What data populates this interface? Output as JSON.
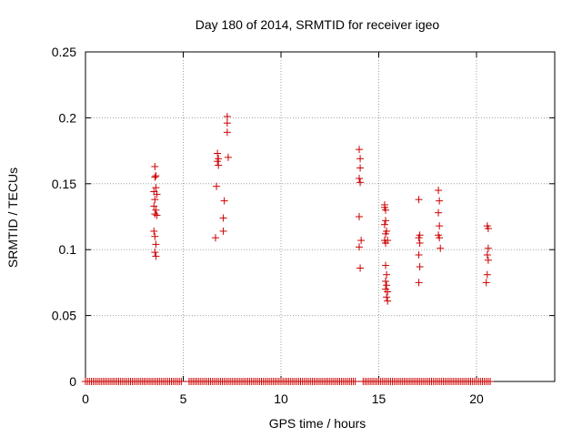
{
  "chart_data": {
    "type": "scatter",
    "title": "Day 180 of 2014, SRMTID for receiver igeo",
    "xlabel": "GPS time / hours",
    "ylabel": "SRMTID / TECUs",
    "xlim": [
      0,
      24
    ],
    "ylim": [
      0,
      0.25
    ],
    "xticks": [
      0,
      5,
      10,
      15,
      20
    ],
    "xtick_labels": [
      "0",
      "5",
      "10",
      "15",
      "20"
    ],
    "yticks": [
      0,
      0.05,
      0.1,
      0.15,
      0.2,
      0.25
    ],
    "ytick_labels": [
      "0",
      "0.05",
      "0.1",
      "0.15",
      "0.2",
      "0.25"
    ],
    "grid": true,
    "marker": "+",
    "series_color": "#cc0000",
    "grid_color": "#a0a0a0",
    "points": [
      [
        3.55,
        0.163
      ],
      [
        3.6,
        0.156
      ],
      [
        3.55,
        0.155
      ],
      [
        3.6,
        0.147
      ],
      [
        3.5,
        0.144
      ],
      [
        3.65,
        0.142
      ],
      [
        3.55,
        0.138
      ],
      [
        3.5,
        0.133
      ],
      [
        3.6,
        0.13
      ],
      [
        3.55,
        0.127
      ],
      [
        3.65,
        0.126
      ],
      [
        3.5,
        0.114
      ],
      [
        3.55,
        0.11
      ],
      [
        3.6,
        0.104
      ],
      [
        3.55,
        0.098
      ],
      [
        3.6,
        0.095
      ],
      [
        6.75,
        0.173
      ],
      [
        6.8,
        0.169
      ],
      [
        6.75,
        0.167
      ],
      [
        6.8,
        0.164
      ],
      [
        6.7,
        0.148
      ],
      [
        7.1,
        0.137
      ],
      [
        7.05,
        0.124
      ],
      [
        7.05,
        0.114
      ],
      [
        6.65,
        0.109
      ],
      [
        7.25,
        0.201
      ],
      [
        7.25,
        0.196
      ],
      [
        7.25,
        0.189
      ],
      [
        7.3,
        0.17
      ],
      [
        14.0,
        0.176
      ],
      [
        14.05,
        0.169
      ],
      [
        14.05,
        0.162
      ],
      [
        14.0,
        0.154
      ],
      [
        14.05,
        0.151
      ],
      [
        14.0,
        0.125
      ],
      [
        14.1,
        0.107
      ],
      [
        14.0,
        0.102
      ],
      [
        14.05,
        0.086
      ],
      [
        15.3,
        0.134
      ],
      [
        15.3,
        0.132
      ],
      [
        15.35,
        0.13
      ],
      [
        15.35,
        0.122
      ],
      [
        15.3,
        0.119
      ],
      [
        15.4,
        0.114
      ],
      [
        15.35,
        0.112
      ],
      [
        15.3,
        0.107
      ],
      [
        15.35,
        0.105
      ],
      [
        15.45,
        0.107
      ],
      [
        15.35,
        0.088
      ],
      [
        15.4,
        0.081
      ],
      [
        15.35,
        0.076
      ],
      [
        15.4,
        0.073
      ],
      [
        15.35,
        0.07
      ],
      [
        15.45,
        0.068
      ],
      [
        15.4,
        0.064
      ],
      [
        15.45,
        0.061
      ],
      [
        17.05,
        0.138
      ],
      [
        17.1,
        0.111
      ],
      [
        17.05,
        0.109
      ],
      [
        17.1,
        0.105
      ],
      [
        17.05,
        0.096
      ],
      [
        17.1,
        0.087
      ],
      [
        17.05,
        0.075
      ],
      [
        18.05,
        0.145
      ],
      [
        18.1,
        0.137
      ],
      [
        18.05,
        0.128
      ],
      [
        18.1,
        0.118
      ],
      [
        18.05,
        0.111
      ],
      [
        18.1,
        0.109
      ],
      [
        18.15,
        0.101
      ],
      [
        20.55,
        0.118
      ],
      [
        20.6,
        0.116
      ],
      [
        20.6,
        0.101
      ],
      [
        20.55,
        0.096
      ],
      [
        20.6,
        0.092
      ],
      [
        20.55,
        0.081
      ],
      [
        20.5,
        0.075
      ]
    ],
    "zero_line_ranges": [
      [
        0.0,
        4.9
      ],
      [
        5.3,
        13.8
      ],
      [
        14.2,
        20.75
      ]
    ]
  }
}
